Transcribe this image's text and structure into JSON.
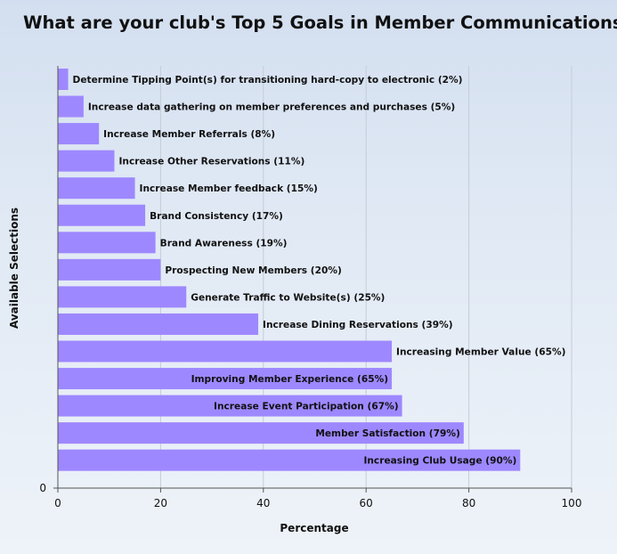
{
  "chart_data": {
    "type": "bar",
    "orientation": "horizontal",
    "title": "What are your club's Top 5 Goals in Member Communications",
    "xlabel": "Percentage",
    "ylabel": "Available Selections",
    "xlim": [
      0,
      100
    ],
    "x_ticks": [
      0,
      20,
      40,
      60,
      80,
      100
    ],
    "y_tick_labels": [
      "0"
    ],
    "grid": "vertical",
    "bar_color": "#9e88ff",
    "categories": [
      "Determine Tipping Point(s) for transitioning hard-copy to electronic (2%)",
      "Increase data gathering on member preferences and purchases (5%)",
      "Increase Member Referrals (8%)",
      "Increase Other Reservations (11%)",
      "Increase Member feedback (15%)",
      "Brand Consistency (17%)",
      "Brand Awareness (19%)",
      "Prospecting New Members (20%)",
      "Generate Traffic to Website(s) (25%)",
      "Increase Dining Reservations (39%)",
      "Increasing Member Value (65%)",
      "Improving Member Experience (65%)",
      "Increase Event Participation (67%)",
      "Member Satisfaction (79%)",
      "Increasing Club Usage (90%)"
    ],
    "values": [
      2,
      5,
      8,
      11,
      15,
      17,
      19,
      20,
      25,
      39,
      65,
      65,
      67,
      79,
      90
    ],
    "label_inside": [
      false,
      false,
      false,
      false,
      false,
      false,
      false,
      false,
      false,
      false,
      false,
      true,
      true,
      true,
      true
    ]
  }
}
